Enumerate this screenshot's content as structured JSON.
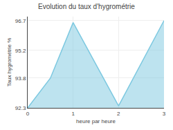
{
  "chart_data": {
    "type": "area",
    "title": "Evolution du taux d'hygrométrie",
    "xlabel": "heure par heure",
    "ylabel": "Taux hygrométrie %",
    "x": [
      0,
      0.5,
      1,
      2,
      3
    ],
    "values": [
      92.3,
      93.8,
      96.6,
      92.4,
      96.7
    ],
    "color": "#7cc8e0",
    "xlim": [
      0,
      3
    ],
    "ylim": [
      92.3,
      96.9
    ],
    "xticks": [
      0,
      1,
      2,
      3
    ],
    "yticks": [
      92.3,
      93.8,
      95.2,
      96.7
    ],
    "grid": true
  }
}
